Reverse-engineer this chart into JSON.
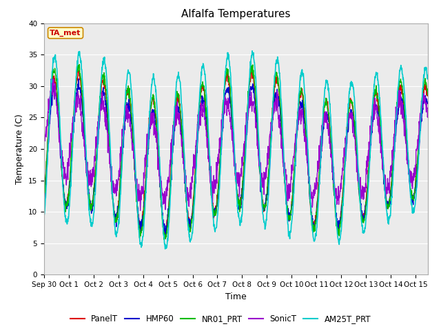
{
  "title": "Alfalfa Temperatures",
  "ylabel": "Temperature (C)",
  "xlabel": "Time",
  "ylim": [
    0,
    40
  ],
  "annotation": "TA_met",
  "annotation_color": "#cc0000",
  "annotation_bg": "#ffffcc",
  "bg_color": "#ebebeb",
  "fig_bg": "#ffffff",
  "grid_color": "#ffffff",
  "series": [
    "PanelT",
    "HMP60",
    "NR01_PRT",
    "SonicT",
    "AM25T_PRT"
  ],
  "colors": [
    "#dd0000",
    "#0000cc",
    "#00bb00",
    "#9900cc",
    "#00cccc"
  ],
  "linewidths": [
    1.0,
    1.0,
    1.0,
    1.0,
    1.2
  ],
  "xtick_labels": [
    "Sep 30",
    "Oct 1",
    "Oct 2",
    "Oct 3",
    "Oct 4",
    "Oct 5",
    "Oct 6",
    "Oct 7",
    "Oct 8",
    "Oct 9",
    "Oct 10",
    "Oct 11",
    "Oct 12",
    "Oct 13",
    "Oct 14",
    "Oct 15"
  ],
  "title_fontsize": 11,
  "label_fontsize": 9,
  "tick_fontsize": 7.5
}
